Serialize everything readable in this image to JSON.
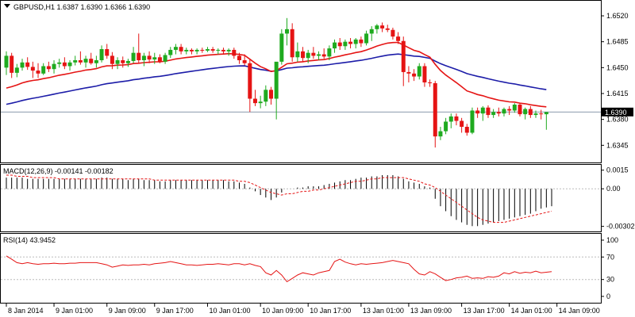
{
  "chart_data": [
    {
      "type": "candlestick",
      "title": "GBPUSD,H1  1.6387 1.6390 1.6366 1.6390",
      "yticks": [
        "1.6520",
        "1.6485",
        "1.6450",
        "1.6415",
        "1.6380",
        "1.6345"
      ],
      "ylim": [
        1.6325,
        1.6535
      ],
      "last_price_label": "1.6390",
      "last_price": 1.639,
      "bull_color": "#1faa1f",
      "bear_color": "#e51414",
      "ema_fast_color": "#e51414",
      "ema_slow_color": "#1c1ca8",
      "candles": [
        {
          "o": 1.645,
          "h": 1.6472,
          "l": 1.644,
          "c": 1.6466
        },
        {
          "o": 1.6466,
          "h": 1.647,
          "l": 1.6436,
          "c": 1.6443
        },
        {
          "o": 1.6443,
          "h": 1.6455,
          "l": 1.6437,
          "c": 1.645
        },
        {
          "o": 1.645,
          "h": 1.6462,
          "l": 1.6446,
          "c": 1.6457
        },
        {
          "o": 1.6457,
          "h": 1.6464,
          "l": 1.6447,
          "c": 1.6451
        },
        {
          "o": 1.6451,
          "h": 1.6458,
          "l": 1.6436,
          "c": 1.6446
        },
        {
          "o": 1.6446,
          "h": 1.6456,
          "l": 1.6436,
          "c": 1.6442
        },
        {
          "o": 1.6442,
          "h": 1.6456,
          "l": 1.644,
          "c": 1.6452
        },
        {
          "o": 1.6452,
          "h": 1.6458,
          "l": 1.6444,
          "c": 1.6448
        },
        {
          "o": 1.6448,
          "h": 1.646,
          "l": 1.6442,
          "c": 1.6455
        },
        {
          "o": 1.6455,
          "h": 1.6462,
          "l": 1.645,
          "c": 1.6457
        },
        {
          "o": 1.6457,
          "h": 1.6464,
          "l": 1.6448,
          "c": 1.6452
        },
        {
          "o": 1.6452,
          "h": 1.646,
          "l": 1.6446,
          "c": 1.6457
        },
        {
          "o": 1.6457,
          "h": 1.6466,
          "l": 1.6453,
          "c": 1.646
        },
        {
          "o": 1.646,
          "h": 1.6472,
          "l": 1.6454,
          "c": 1.6457
        },
        {
          "o": 1.6457,
          "h": 1.6466,
          "l": 1.645,
          "c": 1.6462
        },
        {
          "o": 1.6462,
          "h": 1.647,
          "l": 1.6454,
          "c": 1.6456
        },
        {
          "o": 1.6456,
          "h": 1.6466,
          "l": 1.645,
          "c": 1.646
        },
        {
          "o": 1.646,
          "h": 1.648,
          "l": 1.6457,
          "c": 1.6475
        },
        {
          "o": 1.6475,
          "h": 1.6482,
          "l": 1.6462,
          "c": 1.6466
        },
        {
          "o": 1.6466,
          "h": 1.6471,
          "l": 1.6448,
          "c": 1.6455
        },
        {
          "o": 1.6455,
          "h": 1.6464,
          "l": 1.6448,
          "c": 1.646
        },
        {
          "o": 1.646,
          "h": 1.6465,
          "l": 1.645,
          "c": 1.6456
        },
        {
          "o": 1.6456,
          "h": 1.6462,
          "l": 1.6451,
          "c": 1.6459
        },
        {
          "o": 1.6459,
          "h": 1.6478,
          "l": 1.6456,
          "c": 1.647
        },
        {
          "o": 1.647,
          "h": 1.6496,
          "l": 1.6456,
          "c": 1.646
        },
        {
          "o": 1.646,
          "h": 1.647,
          "l": 1.6452,
          "c": 1.6466
        },
        {
          "o": 1.6466,
          "h": 1.6472,
          "l": 1.6456,
          "c": 1.6461
        },
        {
          "o": 1.6461,
          "h": 1.647,
          "l": 1.6455,
          "c": 1.6464
        },
        {
          "o": 1.6464,
          "h": 1.6468,
          "l": 1.6456,
          "c": 1.6458
        },
        {
          "o": 1.6458,
          "h": 1.647,
          "l": 1.6455,
          "c": 1.6467
        },
        {
          "o": 1.6467,
          "h": 1.6478,
          "l": 1.6463,
          "c": 1.6474
        },
        {
          "o": 1.6474,
          "h": 1.6482,
          "l": 1.6468,
          "c": 1.6478
        },
        {
          "o": 1.6478,
          "h": 1.6482,
          "l": 1.6468,
          "c": 1.6472
        },
        {
          "o": 1.6472,
          "h": 1.6477,
          "l": 1.6468,
          "c": 1.6474
        },
        {
          "o": 1.6474,
          "h": 1.6476,
          "l": 1.6468,
          "c": 1.6472
        },
        {
          "o": 1.6472,
          "h": 1.6476,
          "l": 1.6468,
          "c": 1.6474
        },
        {
          "o": 1.6474,
          "h": 1.6477,
          "l": 1.647,
          "c": 1.6473
        },
        {
          "o": 1.6473,
          "h": 1.6478,
          "l": 1.6471,
          "c": 1.6475
        },
        {
          "o": 1.6475,
          "h": 1.6478,
          "l": 1.647,
          "c": 1.6473
        },
        {
          "o": 1.6473,
          "h": 1.6476,
          "l": 1.6468,
          "c": 1.6474
        },
        {
          "o": 1.6474,
          "h": 1.6477,
          "l": 1.6468,
          "c": 1.6472
        },
        {
          "o": 1.6472,
          "h": 1.6476,
          "l": 1.6466,
          "c": 1.6474
        },
        {
          "o": 1.6474,
          "h": 1.6477,
          "l": 1.6462,
          "c": 1.6466
        },
        {
          "o": 1.6466,
          "h": 1.647,
          "l": 1.6455,
          "c": 1.646
        },
        {
          "o": 1.646,
          "h": 1.6468,
          "l": 1.6453,
          "c": 1.6456
        },
        {
          "o": 1.6456,
          "h": 1.6462,
          "l": 1.639,
          "c": 1.6408
        },
        {
          "o": 1.6408,
          "h": 1.642,
          "l": 1.6398,
          "c": 1.6402
        },
        {
          "o": 1.6402,
          "h": 1.6412,
          "l": 1.6395,
          "c": 1.6404
        },
        {
          "o": 1.6404,
          "h": 1.6426,
          "l": 1.6398,
          "c": 1.642
        },
        {
          "o": 1.642,
          "h": 1.6424,
          "l": 1.64,
          "c": 1.6408
        },
        {
          "o": 1.6408,
          "h": 1.6456,
          "l": 1.638,
          "c": 1.6458
        },
        {
          "o": 1.6458,
          "h": 1.6502,
          "l": 1.6454,
          "c": 1.6496
        },
        {
          "o": 1.6496,
          "h": 1.6517,
          "l": 1.648,
          "c": 1.6502
        },
        {
          "o": 1.6502,
          "h": 1.651,
          "l": 1.6458,
          "c": 1.6464
        },
        {
          "o": 1.6464,
          "h": 1.6484,
          "l": 1.6458,
          "c": 1.6472
        },
        {
          "o": 1.6472,
          "h": 1.6478,
          "l": 1.6458,
          "c": 1.6463
        },
        {
          "o": 1.6463,
          "h": 1.6474,
          "l": 1.6456,
          "c": 1.647
        },
        {
          "o": 1.647,
          "h": 1.6478,
          "l": 1.6462,
          "c": 1.6466
        },
        {
          "o": 1.6466,
          "h": 1.6472,
          "l": 1.646,
          "c": 1.6468
        },
        {
          "o": 1.6468,
          "h": 1.6476,
          "l": 1.6462,
          "c": 1.6465
        },
        {
          "o": 1.6465,
          "h": 1.648,
          "l": 1.646,
          "c": 1.6476
        },
        {
          "o": 1.6476,
          "h": 1.6488,
          "l": 1.647,
          "c": 1.6484
        },
        {
          "o": 1.6484,
          "h": 1.649,
          "l": 1.6474,
          "c": 1.6479
        },
        {
          "o": 1.6479,
          "h": 1.6488,
          "l": 1.6474,
          "c": 1.6485
        },
        {
          "o": 1.6485,
          "h": 1.649,
          "l": 1.6476,
          "c": 1.6482
        },
        {
          "o": 1.6482,
          "h": 1.649,
          "l": 1.6476,
          "c": 1.6488
        },
        {
          "o": 1.6488,
          "h": 1.6492,
          "l": 1.6478,
          "c": 1.6483
        },
        {
          "o": 1.6483,
          "h": 1.65,
          "l": 1.648,
          "c": 1.6496
        },
        {
          "o": 1.6496,
          "h": 1.6506,
          "l": 1.6486,
          "c": 1.6502
        },
        {
          "o": 1.6502,
          "h": 1.6509,
          "l": 1.6496,
          "c": 1.6507
        },
        {
          "o": 1.6507,
          "h": 1.6511,
          "l": 1.6498,
          "c": 1.6503
        },
        {
          "o": 1.6503,
          "h": 1.6508,
          "l": 1.6498,
          "c": 1.6501
        },
        {
          "o": 1.6501,
          "h": 1.6504,
          "l": 1.6488,
          "c": 1.6492
        },
        {
          "o": 1.6492,
          "h": 1.6498,
          "l": 1.6482,
          "c": 1.6486
        },
        {
          "o": 1.6486,
          "h": 1.6492,
          "l": 1.6425,
          "c": 1.6444
        },
        {
          "o": 1.6444,
          "h": 1.6452,
          "l": 1.643,
          "c": 1.6442
        },
        {
          "o": 1.6442,
          "h": 1.6448,
          "l": 1.6432,
          "c": 1.6438
        },
        {
          "o": 1.6438,
          "h": 1.6456,
          "l": 1.6434,
          "c": 1.6452
        },
        {
          "o": 1.6452,
          "h": 1.6456,
          "l": 1.6424,
          "c": 1.643
        },
        {
          "o": 1.643,
          "h": 1.6434,
          "l": 1.6424,
          "c": 1.6429
        },
        {
          "o": 1.6429,
          "h": 1.6432,
          "l": 1.6342,
          "c": 1.6357
        },
        {
          "o": 1.6357,
          "h": 1.637,
          "l": 1.6352,
          "c": 1.6364
        },
        {
          "o": 1.6364,
          "h": 1.6382,
          "l": 1.636,
          "c": 1.6377
        },
        {
          "o": 1.6377,
          "h": 1.6388,
          "l": 1.6368,
          "c": 1.6384
        },
        {
          "o": 1.6384,
          "h": 1.6388,
          "l": 1.6372,
          "c": 1.6378
        },
        {
          "o": 1.6378,
          "h": 1.6382,
          "l": 1.6362,
          "c": 1.637
        },
        {
          "o": 1.637,
          "h": 1.6374,
          "l": 1.6358,
          "c": 1.6362
        },
        {
          "o": 1.6362,
          "h": 1.6396,
          "l": 1.636,
          "c": 1.6392
        },
        {
          "o": 1.6392,
          "h": 1.6396,
          "l": 1.6382,
          "c": 1.6388
        },
        {
          "o": 1.6388,
          "h": 1.6398,
          "l": 1.6378,
          "c": 1.6396
        },
        {
          "o": 1.6396,
          "h": 1.6399,
          "l": 1.6382,
          "c": 1.6386
        },
        {
          "o": 1.6386,
          "h": 1.6394,
          "l": 1.6382,
          "c": 1.639
        },
        {
          "o": 1.639,
          "h": 1.6396,
          "l": 1.6384,
          "c": 1.6388
        },
        {
          "o": 1.6388,
          "h": 1.6396,
          "l": 1.6384,
          "c": 1.6394
        },
        {
          "o": 1.6394,
          "h": 1.6398,
          "l": 1.6386,
          "c": 1.6392
        },
        {
          "o": 1.6392,
          "h": 1.6402,
          "l": 1.6389,
          "c": 1.64
        },
        {
          "o": 1.64,
          "h": 1.6402,
          "l": 1.6384,
          "c": 1.6387
        },
        {
          "o": 1.6387,
          "h": 1.6396,
          "l": 1.638,
          "c": 1.6394
        },
        {
          "o": 1.6394,
          "h": 1.6398,
          "l": 1.6382,
          "c": 1.6386
        },
        {
          "o": 1.6386,
          "h": 1.6392,
          "l": 1.6382,
          "c": 1.6388
        },
        {
          "o": 1.6388,
          "h": 1.6393,
          "l": 1.638,
          "c": 1.6387
        },
        {
          "o": 1.6387,
          "h": 1.639,
          "l": 1.6366,
          "c": 1.639
        }
      ]
    },
    {
      "type": "histogram",
      "title": "MACD(12,26,9) -0.00141 -0.00182",
      "yticks": [
        "0.0015",
        "0.00",
        "-0.00302"
      ],
      "ylim": [
        -0.0033,
        0.0018
      ],
      "signal_color": "#e51414",
      "hist_color": "#000000",
      "values": [
        0.0009,
        0.0009,
        0.0009,
        0.0009,
        0.0008,
        0.0008,
        0.0008,
        0.0008,
        0.0008,
        0.0008,
        0.0008,
        0.0008,
        0.0008,
        0.0008,
        0.0008,
        0.0008,
        0.0008,
        0.0008,
        0.0009,
        0.0009,
        0.0008,
        0.0008,
        0.0008,
        0.0007,
        0.0008,
        0.0008,
        0.0007,
        0.0007,
        0.0007,
        0.0006,
        0.0006,
        0.0007,
        0.0007,
        0.0007,
        0.0007,
        0.0007,
        0.0007,
        0.0007,
        0.0007,
        0.0007,
        0.0007,
        0.0007,
        0.0006,
        0.0006,
        0.0005,
        0.0004,
        0.0001,
        -0.0002,
        -0.0005,
        -0.0007,
        -0.0009,
        -0.0007,
        -0.0003,
        0.0,
        0.0,
        0.0001,
        0.0001,
        0.0002,
        0.0002,
        0.0002,
        0.0003,
        0.0004,
        0.0005,
        0.0006,
        0.0007,
        0.0007,
        0.0008,
        0.0009,
        0.0009,
        0.001,
        0.001,
        0.0011,
        0.0011,
        0.0011,
        0.001,
        0.0008,
        0.0006,
        0.0005,
        0.0004,
        0.0002,
        0.0001,
        -0.0008,
        -0.0014,
        -0.0018,
        -0.0022,
        -0.0025,
        -0.0027,
        -0.0029,
        -0.003,
        -0.003,
        -0.0029,
        -0.0028,
        -0.0027,
        -0.0026,
        -0.0025,
        -0.0024,
        -0.0023,
        -0.0022,
        -0.0021,
        -0.002,
        -0.0018,
        -0.0016,
        -0.0015,
        -0.0014
      ],
      "signal": [
        0.0011,
        0.0011,
        0.001,
        0.001,
        0.001,
        0.0009,
        0.0009,
        0.0009,
        0.0009,
        0.0009,
        0.0008,
        0.0008,
        0.0008,
        0.0008,
        0.0008,
        0.0008,
        0.0008,
        0.0008,
        0.0008,
        0.0008,
        0.0008,
        0.0008,
        0.0008,
        0.0008,
        0.0008,
        0.0008,
        0.0008,
        0.0008,
        0.0007,
        0.0007,
        0.0007,
        0.0007,
        0.0007,
        0.0007,
        0.0007,
        0.0007,
        0.0007,
        0.0007,
        0.0007,
        0.0007,
        0.0007,
        0.0007,
        0.0007,
        0.0007,
        0.0006,
        0.0006,
        0.0005,
        0.0003,
        0.0001,
        -0.0001,
        -0.0003,
        -0.0004,
        -0.0005,
        -0.0004,
        -0.0004,
        -0.0003,
        -0.0002,
        -0.0002,
        -0.0001,
        -0.0001,
        0.0,
        0.0001,
        0.0002,
        0.0003,
        0.0004,
        0.0005,
        0.0006,
        0.0006,
        0.0007,
        0.0008,
        0.0008,
        0.0009,
        0.0009,
        0.0009,
        0.0009,
        0.0009,
        0.0008,
        0.0007,
        0.0006,
        0.0004,
        0.0003,
        0.0001,
        -0.0002,
        -0.0005,
        -0.0008,
        -0.0011,
        -0.0014,
        -0.0017,
        -0.002,
        -0.0023,
        -0.0025,
        -0.0026,
        -0.0027,
        -0.0027,
        -0.0027,
        -0.0026,
        -0.0025,
        -0.0024,
        -0.0023,
        -0.0022,
        -0.0021,
        -0.002,
        -0.0019,
        -0.0018
      ]
    },
    {
      "type": "line",
      "title": "RSI(14) 43.9452",
      "yticks": [
        "100",
        "70",
        "30",
        "0"
      ],
      "levels": [
        70,
        30
      ],
      "ylim": [
        0,
        100
      ],
      "color": "#e51414",
      "values": [
        72,
        66,
        60,
        58,
        60,
        58,
        57,
        58,
        58,
        59,
        58,
        58,
        59,
        59,
        60,
        60,
        60,
        60,
        58,
        56,
        52,
        54,
        56,
        55,
        56,
        56,
        57,
        56,
        58,
        59,
        60,
        62,
        60,
        58,
        56,
        56,
        55,
        56,
        57,
        57,
        58,
        57,
        56,
        58,
        58,
        56,
        58,
        55,
        53,
        42,
        38,
        46,
        38,
        26,
        32,
        38,
        42,
        40,
        38,
        42,
        44,
        46,
        62,
        66,
        61,
        58,
        56,
        58,
        57,
        58,
        59,
        60,
        62,
        64,
        62,
        60,
        58,
        48,
        40,
        38,
        44,
        40,
        34,
        28,
        30,
        33,
        34,
        36,
        32,
        33,
        32,
        35,
        34,
        36,
        42,
        40,
        44,
        41,
        43,
        42,
        45,
        42,
        43,
        44
      ]
    },
    {
      "type": "axis",
      "xticks": [
        "8 Jan 2014",
        "9 Jan 01:00",
        "9 Jan 09:00",
        "9 Jan 17:00",
        "10 Jan 01:00",
        "10 Jan 09:00",
        "10 Jan 17:00",
        "13 Jan 01:00",
        "13 Jan 09:00",
        "13 Jan 17:00",
        "14 Jan 01:00",
        "14 Jan 09:00"
      ]
    }
  ]
}
